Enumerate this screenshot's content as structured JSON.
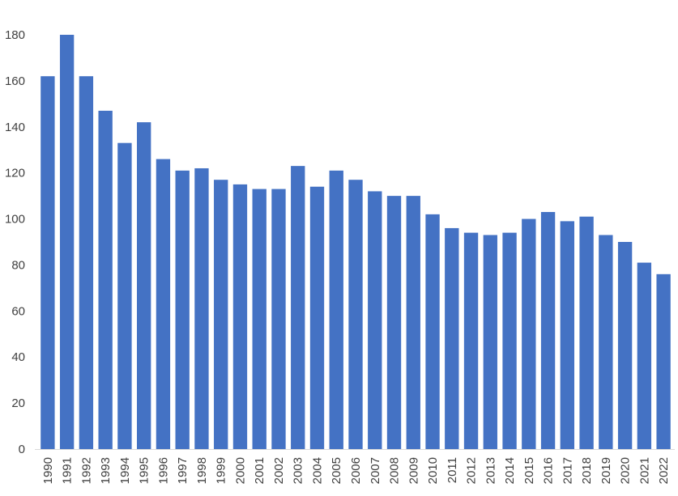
{
  "chart_data": {
    "type": "bar",
    "title": "",
    "xlabel": "",
    "ylabel": "",
    "categories": [
      "1990",
      "1991",
      "1992",
      "1993",
      "1994",
      "1995",
      "1996",
      "1997",
      "1998",
      "1999",
      "2000",
      "2001",
      "2002",
      "2003",
      "2004",
      "2005",
      "2006",
      "2007",
      "2008",
      "2009",
      "2010",
      "2011",
      "2012",
      "2013",
      "2014",
      "2015",
      "2016",
      "2017",
      "2018",
      "2019",
      "2020",
      "2021",
      "2022"
    ],
    "values": [
      162,
      180,
      162,
      147,
      133,
      142,
      126,
      121,
      122,
      117,
      115,
      113,
      113,
      123,
      114,
      121,
      117,
      112,
      110,
      110,
      102,
      96,
      94,
      93,
      94,
      100,
      103,
      99,
      101,
      93,
      90,
      81,
      76
    ],
    "ylim": [
      0,
      180
    ],
    "yticks": [
      0,
      20,
      40,
      60,
      80,
      100,
      120,
      140,
      160,
      180
    ],
    "grid": false,
    "legend": "none",
    "bar_color": "#4472C4",
    "axis_color": "#D9D9D9"
  }
}
